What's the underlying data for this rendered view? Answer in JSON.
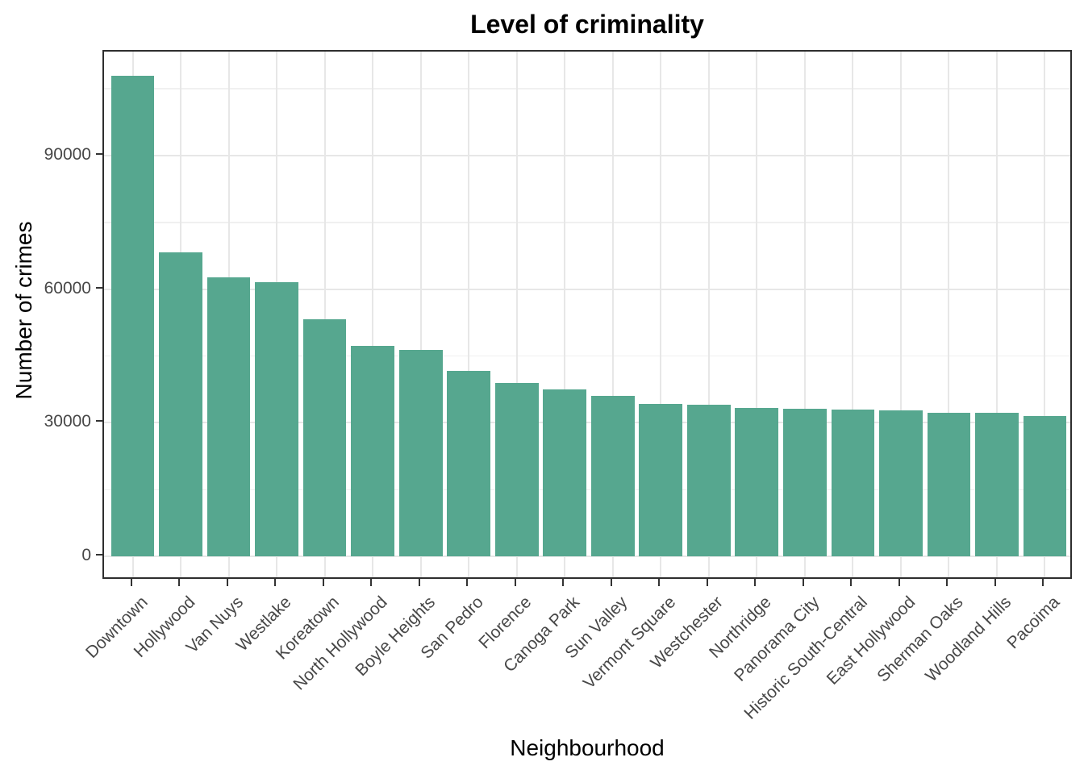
{
  "chart_data": {
    "type": "bar",
    "title": "Level of criminality",
    "xlabel": "Neighbourhood",
    "ylabel": "Number of crimes",
    "categories": [
      "Downtown",
      "Hollywood",
      "Van Nuys",
      "Westlake",
      "Koreatown",
      "North Hollywood",
      "Boyle Heights",
      "San Pedro",
      "Florence",
      "Canoga Park",
      "Sun Valley",
      "Vermont Square",
      "Westchester",
      "Northridge",
      "Panorama City",
      "Historic South-Central",
      "East Hollywood",
      "Sherman Oaks",
      "Woodland Hills",
      "Pacoima"
    ],
    "values": [
      107900,
      68300,
      62700,
      61600,
      53300,
      47300,
      46300,
      41600,
      39000,
      37400,
      36000,
      34300,
      34100,
      33300,
      33100,
      32900,
      32700,
      32300,
      32200,
      31600
    ],
    "yticks": [
      0,
      30000,
      60000,
      90000
    ],
    "ytick_labels": [
      "0",
      "30000",
      "60000",
      "90000"
    ],
    "y_minor_ticks": [
      15000,
      45000,
      75000,
      105000
    ],
    "ylim": [
      -5400,
      113300
    ],
    "bar_width_fraction": 0.9,
    "legend": "none",
    "grid": "horizontal major+minor, vertical major at category centers",
    "colors": {
      "bar_fill": "#56a78f",
      "grid_major": "#e7e7e7",
      "grid_minor": "#f0f0f0",
      "panel_border": "#2e2e2e",
      "axis_text": "#474747",
      "title_text": "#000000",
      "background": "#ffffff"
    }
  }
}
